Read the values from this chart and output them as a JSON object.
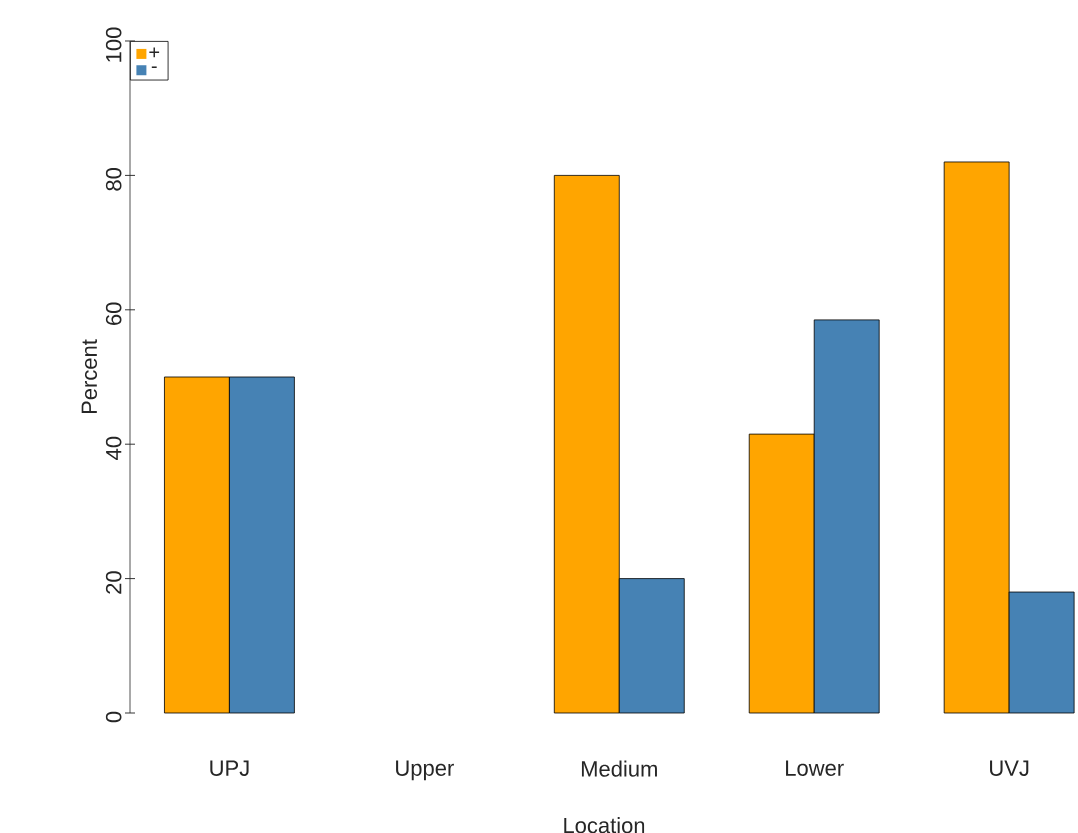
{
  "chart_data": {
    "type": "bar",
    "xlabel": "Location",
    "ylabel": "Percent",
    "categories": [
      "UPJ",
      "Upper",
      "Medium",
      "Lower",
      "UVJ"
    ],
    "series": [
      {
        "name": "+",
        "color": "#ffa500",
        "values": [
          50,
          null,
          80,
          41.5,
          82
        ]
      },
      {
        "name": "-",
        "color": "#4682b4",
        "values": [
          50,
          null,
          20,
          58.5,
          18
        ]
      }
    ],
    "ylim": [
      0,
      100
    ],
    "yticks": [
      0,
      20,
      40,
      60,
      80,
      100
    ],
    "grid": false,
    "legend": "top left"
  }
}
